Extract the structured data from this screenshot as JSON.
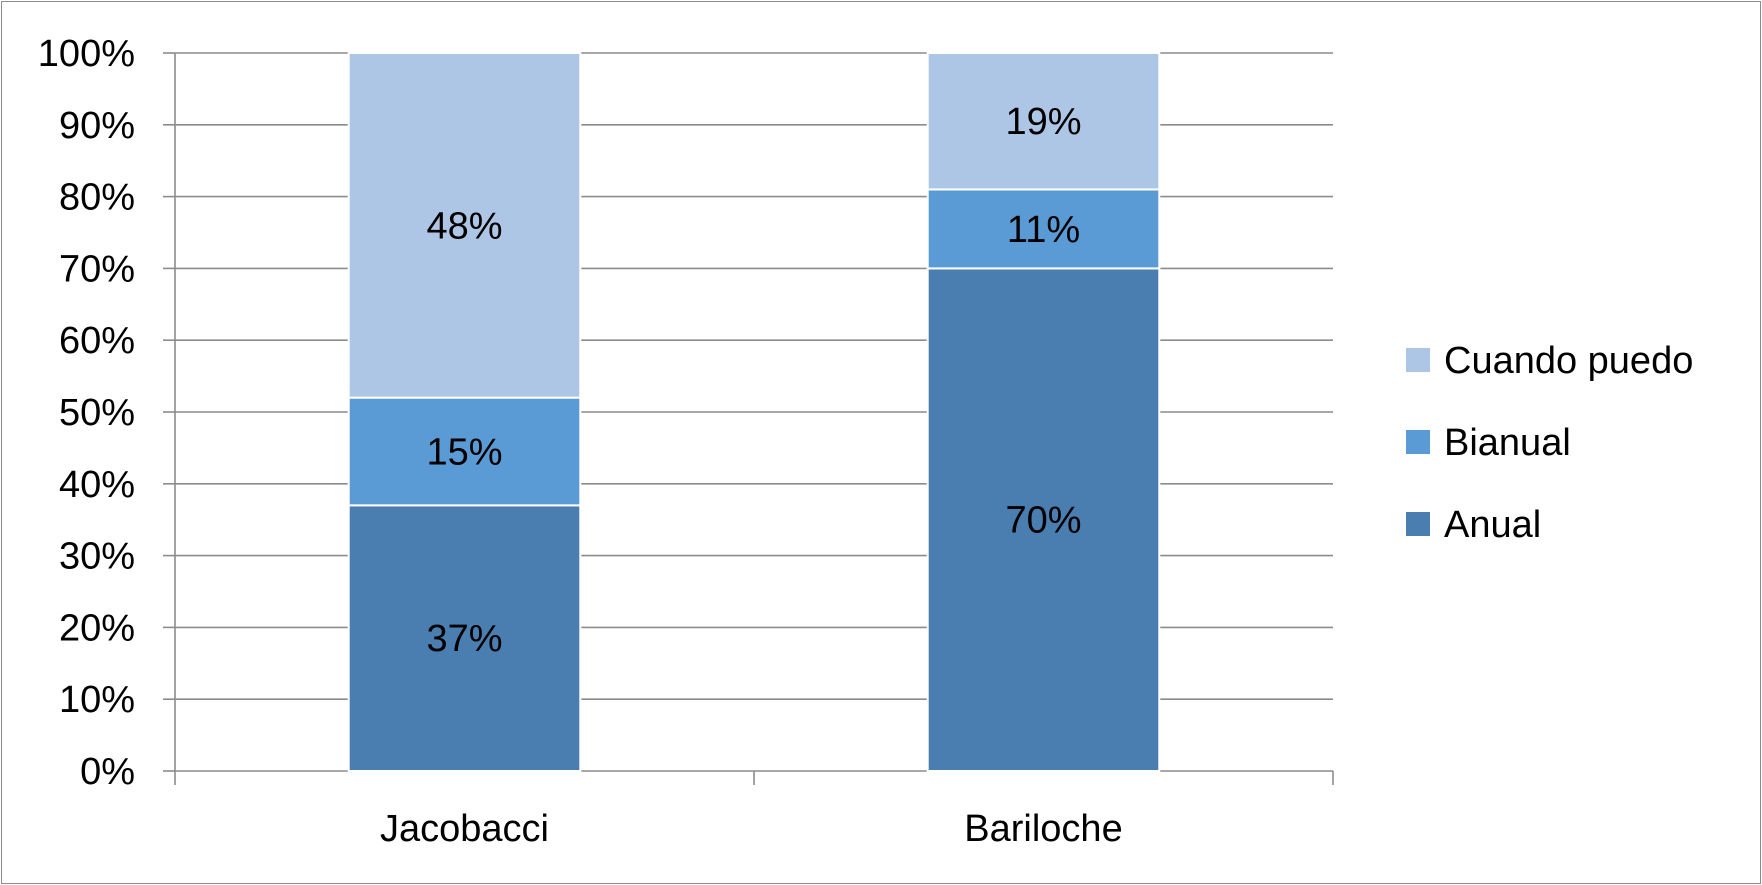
{
  "chart_data": {
    "type": "bar",
    "stacked": true,
    "percent_stacked": true,
    "categories": [
      "Jacobacci",
      "Bariloche"
    ],
    "series": [
      {
        "name": "Anual",
        "values": [
          37,
          70
        ],
        "labels": [
          "37%",
          "70%"
        ],
        "color": "#4a7eb0"
      },
      {
        "name": "Bianual",
        "values": [
          15,
          11
        ],
        "labels": [
          "15%",
          "11%"
        ],
        "color": "#5b9bd5"
      },
      {
        "name": "Cuando puedo",
        "values": [
          48,
          19
        ],
        "labels": [
          "48%",
          "19%"
        ],
        "color": "#aec6e6"
      }
    ],
    "ylim": [
      0,
      100
    ],
    "yticks": [
      "0%",
      "10%",
      "20%",
      "30%",
      "40%",
      "50%",
      "60%",
      "70%",
      "80%",
      "90%",
      "100%"
    ],
    "grid": true,
    "legend": {
      "placement": "right",
      "order": [
        "Cuando puedo",
        "Bianual",
        "Anual"
      ]
    },
    "colors": {
      "gridline": "#8c8c8c",
      "axis": "#8c8c8c",
      "frame": "#8c8c8c",
      "text": "#000000"
    }
  }
}
